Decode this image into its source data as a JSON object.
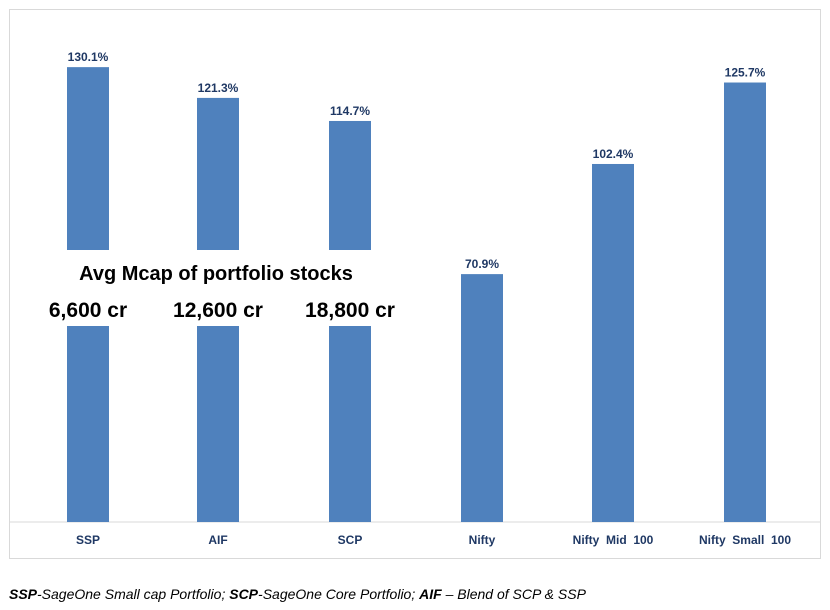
{
  "chart_data": {
    "type": "bar",
    "categories": [
      "SSP",
      "AIF",
      "SCP",
      "Nifty",
      "Nifty  Mid  100",
      "Nifty  Small  100"
    ],
    "values": [
      130.1,
      121.3,
      114.7,
      70.9,
      102.4,
      125.7
    ],
    "value_labels": [
      "130.1%",
      "121.3%",
      "114.7%",
      "70.9%",
      "102.4%",
      "125.7%"
    ],
    "ylim": [
      0,
      135
    ],
    "grid": false,
    "bar_color": "#4f81bd",
    "label_color": "#1f3864"
  },
  "annotation": {
    "title": "Avg Mcap of portfolio stocks",
    "values": [
      "6,600 cr",
      "12,600 cr",
      "18,800 cr"
    ]
  },
  "footnote": {
    "parts": [
      {
        "bold": true,
        "text": "SSP"
      },
      {
        "bold": false,
        "text": "-SageOne Small cap Portfolio; "
      },
      {
        "bold": true,
        "text": "SCP"
      },
      {
        "bold": false,
        "text": "-SageOne Core Portfolio; "
      },
      {
        "bold": true,
        "text": "AIF"
      },
      {
        "bold": false,
        "text": " – Blend of SCP & SSP"
      }
    ]
  }
}
